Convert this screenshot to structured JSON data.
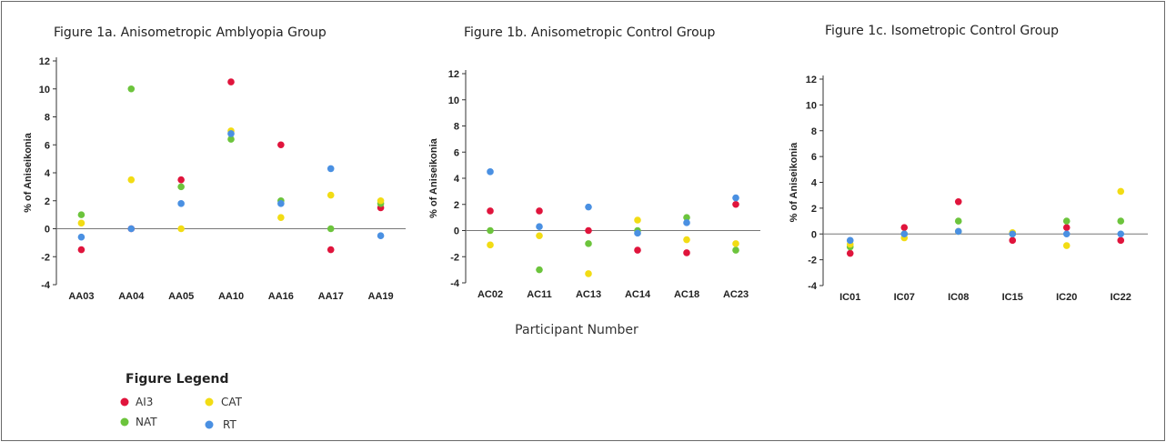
{
  "chart_data": [
    {
      "type": "scatter",
      "title": "Figure 1a. Anisometropic Amblyopia Group",
      "ylabel": "% of Aniseikonia",
      "ylim": [
        -4,
        12
      ],
      "yticks": [
        -4,
        -2,
        0,
        2,
        4,
        6,
        8,
        10,
        12
      ],
      "categories": [
        "AA03",
        "AA04",
        "AA05",
        "AA10",
        "AA16",
        "AA17",
        "AA19"
      ],
      "series": [
        {
          "name": "AI3",
          "values": [
            -1.5,
            0,
            3.5,
            10.5,
            6,
            -1.5,
            1.5
          ]
        },
        {
          "name": "NAT",
          "values": [
            1,
            10,
            3,
            6.4,
            2,
            0,
            1.8
          ]
        },
        {
          "name": "CAT",
          "values": [
            0.4,
            3.5,
            0,
            7,
            0.8,
            2.4,
            2
          ]
        },
        {
          "name": "RT",
          "values": [
            -0.6,
            0,
            1.8,
            6.8,
            1.8,
            4.3,
            -0.5
          ]
        }
      ]
    },
    {
      "type": "scatter",
      "title": "Figure 1b. Anisometropic Control Group",
      "ylabel": "% of Aniseikonia",
      "ylim": [
        -4,
        12
      ],
      "yticks": [
        -4,
        -2,
        0,
        2,
        4,
        6,
        8,
        10,
        12
      ],
      "categories": [
        "AC02",
        "AC11",
        "AC13",
        "AC14",
        "AC18",
        "AC23"
      ],
      "series": [
        {
          "name": "AI3",
          "values": [
            1.5,
            1.5,
            0,
            -1.5,
            -1.7,
            2
          ]
        },
        {
          "name": "NAT",
          "values": [
            0,
            -3,
            -1,
            0,
            1,
            -1.5
          ]
        },
        {
          "name": "CAT",
          "values": [
            -1.1,
            -0.4,
            -3.3,
            0.8,
            -0.7,
            -1
          ]
        },
        {
          "name": "RT",
          "values": [
            4.5,
            0.3,
            1.8,
            -0.2,
            0.6,
            2.5
          ]
        }
      ]
    },
    {
      "type": "scatter",
      "title": "Figure 1c. Isometropic Control Group",
      "ylabel": "% of Aniseikonia",
      "ylim": [
        -4,
        12
      ],
      "yticks": [
        -4,
        -2,
        0,
        2,
        4,
        6,
        8,
        10,
        12
      ],
      "categories": [
        "IC01",
        "IC07",
        "IC08",
        "IC15",
        "IC20",
        "IC22"
      ],
      "series": [
        {
          "name": "AI3",
          "values": [
            -1.5,
            0.5,
            2.5,
            -0.5,
            0.5,
            -0.5
          ]
        },
        {
          "name": "NAT",
          "values": [
            -1,
            0,
            1,
            0,
            1,
            1
          ]
        },
        {
          "name": "CAT",
          "values": [
            -0.8,
            -0.3,
            0.2,
            0.1,
            -0.9,
            3.3
          ]
        },
        {
          "name": "RT",
          "values": [
            -0.5,
            0,
            0.2,
            0,
            0,
            0
          ]
        }
      ]
    }
  ],
  "shared_xlabel": "Participant Number",
  "legend": {
    "title": "Figure Legend",
    "items": [
      {
        "key": "AI3",
        "label": "AI3",
        "color": "#e0143c"
      },
      {
        "key": "CAT",
        "label": "CAT",
        "color": "#f2dc14"
      },
      {
        "key": "NAT",
        "label": "NAT",
        "color": "#6cc43c"
      },
      {
        "key": "RT",
        "label": "RT",
        "color": "#4a90e2"
      }
    ]
  },
  "colors": {
    "AI3": "#e0143c",
    "NAT": "#6cc43c",
    "CAT": "#f2dc14",
    "RT": "#4a90e2",
    "axis": "#333333",
    "zero_line": "#777777"
  }
}
